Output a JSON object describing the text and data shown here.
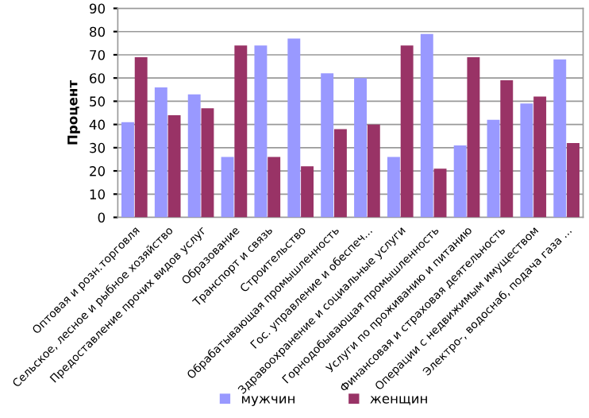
{
  "chart_data": {
    "type": "bar",
    "ylabel": "Процент",
    "categories": [
      "Оптовая и розн.торговля",
      "Сельское, лесное и рыбное хозяйство",
      "Предоставление прочих видов услуг",
      "Образование",
      "Транспорт и связь",
      "Строительство",
      "Обрабатывающая промышленность",
      "Гос. управление и обеспеч...",
      "Здравоохранение и социальные услуги",
      "Горнодобывающая промышленность",
      "Услуги по проживанию и питанию",
      "Финансовая и страховая деятельность",
      "Операции с недвижимым имуществом",
      "Электро-, водоснаб, подача газа ..."
    ],
    "series": [
      {
        "name": "мужчин",
        "color": "#9999ff",
        "values": [
          41,
          56,
          53,
          26,
          74,
          77,
          62,
          60,
          26,
          79,
          31,
          42,
          49,
          68
        ]
      },
      {
        "name": "женщин",
        "color": "#993366",
        "values": [
          69,
          44,
          47,
          74,
          26,
          22,
          38,
          40,
          74,
          21,
          69,
          59,
          52,
          32
        ]
      }
    ],
    "ylim": [
      0,
      90
    ],
    "yticks": [
      0,
      10,
      20,
      30,
      40,
      50,
      60,
      70,
      80,
      90
    ],
    "grid": "y",
    "legend": "bottom"
  }
}
